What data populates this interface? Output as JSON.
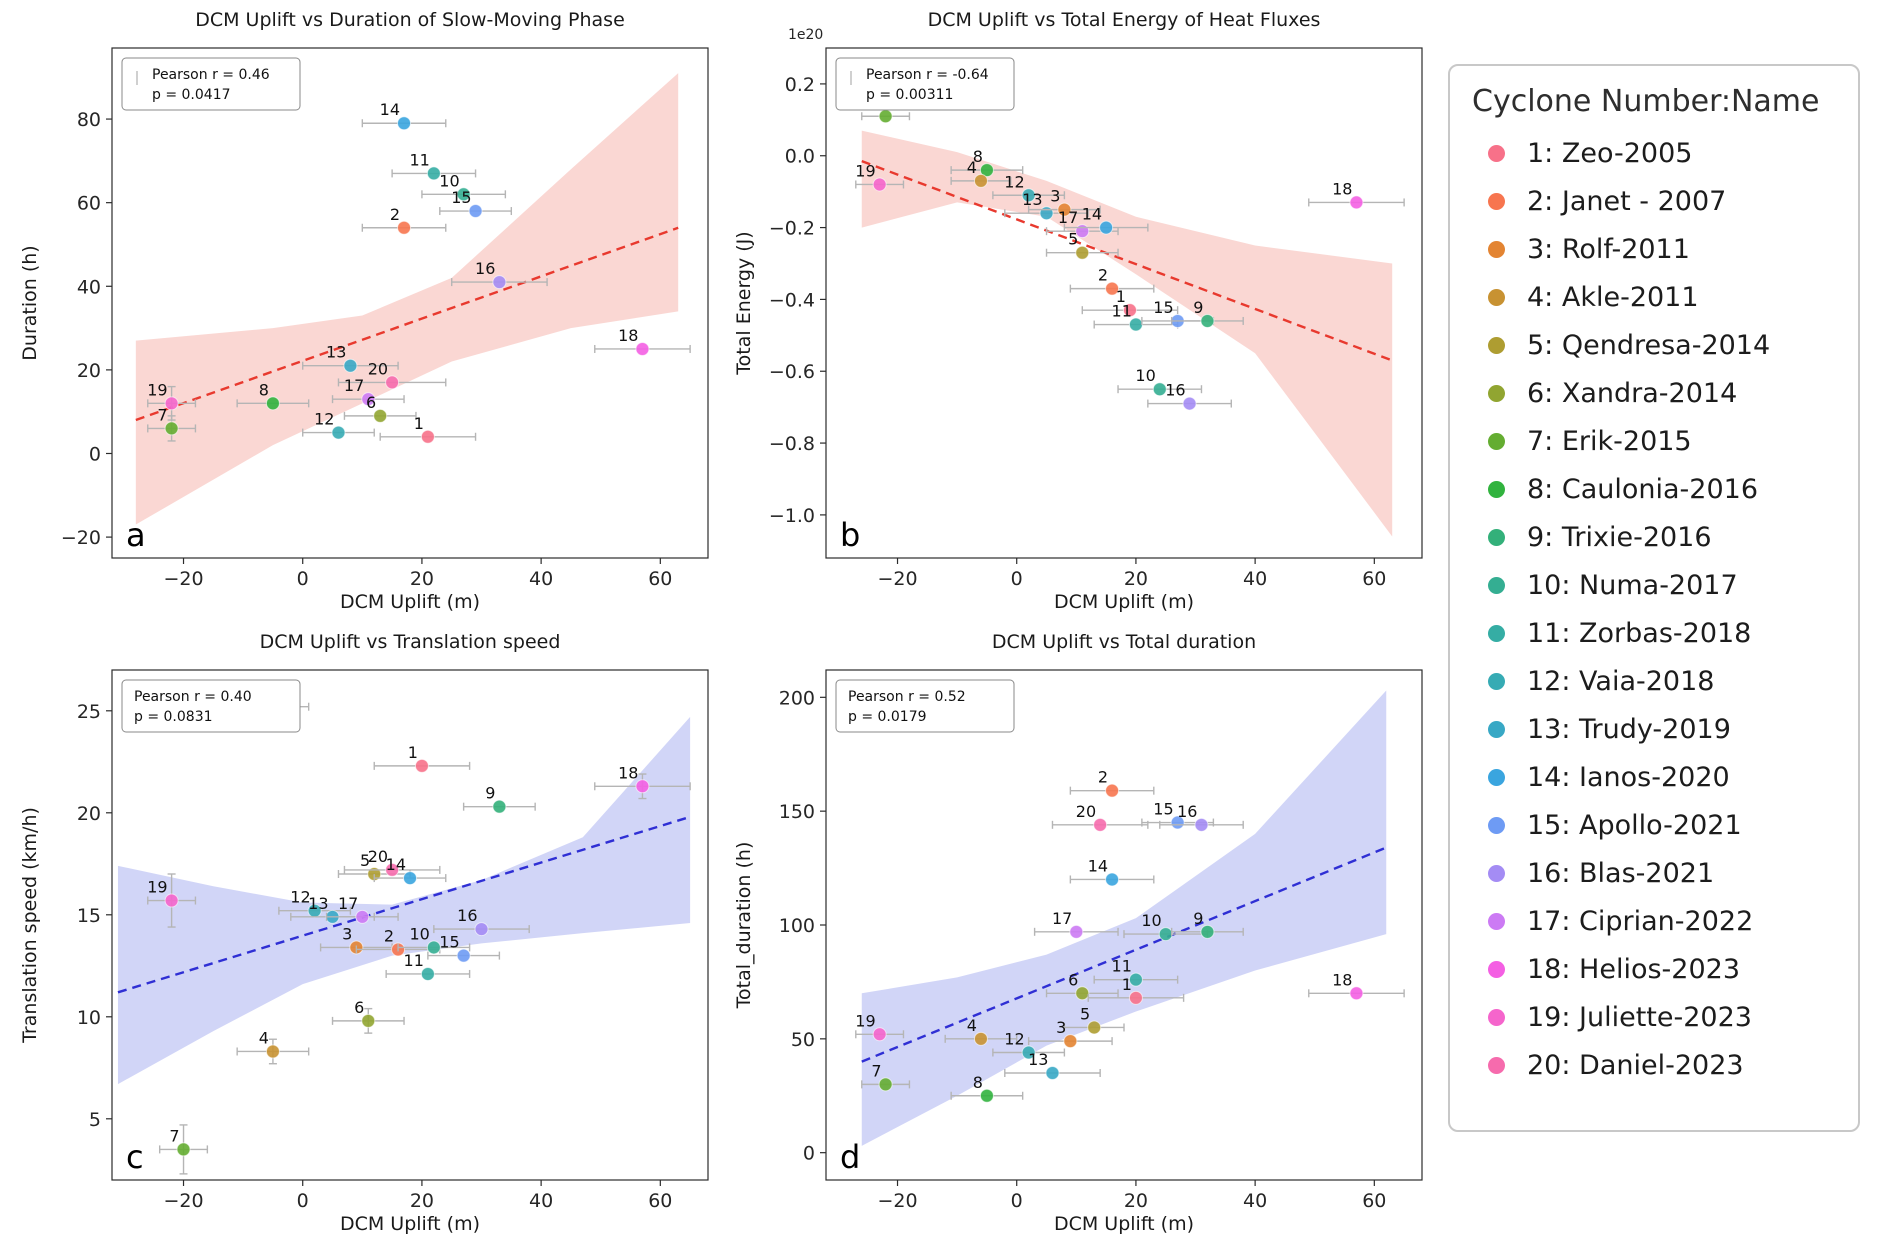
{
  "legend": {
    "title": "Cyclone Number:Name",
    "items": [
      {
        "num": "1",
        "name": "Zeo-2005",
        "color": "#f77189"
      },
      {
        "num": "2",
        "name": "Janet - 2007",
        "color": "#f7754f"
      },
      {
        "num": "3",
        "name": "Rolf-2011",
        "color": "#e38432"
      },
      {
        "num": "4",
        "name": "Akle-2011",
        "color": "#c89232"
      },
      {
        "num": "5",
        "name": "Qendresa-2014",
        "color": "#ae9d31"
      },
      {
        "num": "6",
        "name": "Xandra-2014",
        "color": "#91a531"
      },
      {
        "num": "7",
        "name": "Erik-2015",
        "color": "#64ad31"
      },
      {
        "num": "8",
        "name": "Caulonia-2016",
        "color": "#31b33e"
      },
      {
        "num": "9",
        "name": "Trixie-2016",
        "color": "#33b07a"
      },
      {
        "num": "10",
        "name": "Numa-2017",
        "color": "#34ae92"
      },
      {
        "num": "11",
        "name": "Zorbas-2018",
        "color": "#35ada4"
      },
      {
        "num": "12",
        "name": "Vaia-2018",
        "color": "#36abb4"
      },
      {
        "num": "13",
        "name": "Trudy-2019",
        "color": "#38a8c5"
      },
      {
        "num": "14",
        "name": "Ianos-2020",
        "color": "#3aa5df"
      },
      {
        "num": "15",
        "name": "Apollo-2021",
        "color": "#6e9bf4"
      },
      {
        "num": "16",
        "name": "Blas-2021",
        "color": "#a48cf4"
      },
      {
        "num": "17",
        "name": "Ciprian-2022",
        "color": "#cc7af4"
      },
      {
        "num": "18",
        "name": "Helios-2023",
        "color": "#f45fe3"
      },
      {
        "num": "19",
        "name": "Juliette-2023",
        "color": "#f565cc"
      },
      {
        "num": "20",
        "name": "Daniel-2023",
        "color": "#f66bad"
      }
    ]
  },
  "chart_data": [
    {
      "panel": "a",
      "type": "scatter",
      "title": "DCM Uplift vs Duration of Slow-Moving Phase",
      "xlabel": "DCM Uplift (m)",
      "ylabel": "Duration (h)",
      "annotation": {
        "lines": [
          "Pearson r = 0.46",
          "p = 0.0417"
        ],
        "handle": true
      },
      "xlim": [
        -32,
        68
      ],
      "ylim": [
        -25,
        97
      ],
      "xticks": [
        -20,
        0,
        20,
        40,
        60
      ],
      "yticks": [
        -20,
        0,
        20,
        40,
        60,
        80
      ],
      "ytick_decimals": 0,
      "trend": {
        "color": "#e8392e",
        "x": [
          -28,
          63
        ],
        "y": [
          8,
          54
        ]
      },
      "band": {
        "color": "#f28b82",
        "opacity": 0.35,
        "upper": [
          [
            -28,
            27
          ],
          [
            -5,
            30
          ],
          [
            10,
            33
          ],
          [
            25,
            42
          ],
          [
            45,
            68
          ],
          [
            63,
            91
          ]
        ],
        "lower": [
          [
            -28,
            -17
          ],
          [
            -5,
            2
          ],
          [
            10,
            12
          ],
          [
            25,
            22
          ],
          [
            45,
            30
          ],
          [
            63,
            34
          ]
        ]
      },
      "points": [
        {
          "id": 7,
          "x": -22,
          "y": 6,
          "xerr": 4,
          "yerr": 3
        },
        {
          "id": 19,
          "x": -22,
          "y": 12,
          "xerr": 4,
          "yerr": 4
        },
        {
          "id": 8,
          "x": -5,
          "y": 12,
          "xerr": 6
        },
        {
          "id": 12,
          "x": 6,
          "y": 5,
          "xerr": 6
        },
        {
          "id": 13,
          "x": 8,
          "y": 21,
          "xerr": 8
        },
        {
          "id": 17,
          "x": 11,
          "y": 13,
          "xerr": 6
        },
        {
          "id": 6,
          "x": 13,
          "y": 9,
          "xerr": 6
        },
        {
          "id": 20,
          "x": 15,
          "y": 17,
          "xerr": 9
        },
        {
          "id": 2,
          "x": 17,
          "y": 54,
          "xerr": 7
        },
        {
          "id": 14,
          "x": 17,
          "y": 79,
          "xerr": 7
        },
        {
          "id": 1,
          "x": 21,
          "y": 4,
          "xerr": 8
        },
        {
          "id": 11,
          "x": 22,
          "y": 67,
          "xerr": 7
        },
        {
          "id": 10,
          "x": 27,
          "y": 62,
          "xerr": 7
        },
        {
          "id": 15,
          "x": 29,
          "y": 58,
          "xerr": 6
        },
        {
          "id": 16,
          "x": 33,
          "y": 41,
          "xerr": 8
        },
        {
          "id": 18,
          "x": 57,
          "y": 25,
          "xerr": 8
        }
      ]
    },
    {
      "panel": "b",
      "type": "scatter",
      "title": "DCM Uplift vs Total Energy of Heat Fluxes",
      "xlabel": "DCM Uplift (m)",
      "ylabel": "Total Energy (J)",
      "offset_text": "1e20",
      "annotation": {
        "lines": [
          "Pearson r = -0.64",
          "p = 0.00311"
        ],
        "handle": true
      },
      "xlim": [
        -32,
        68
      ],
      "ylim": [
        -1.12,
        0.3
      ],
      "xticks": [
        -20,
        0,
        20,
        40,
        60
      ],
      "yticks": [
        0.2,
        0.0,
        -0.2,
        -0.4,
        -0.6,
        -0.8,
        -1.0
      ],
      "ytick_decimals": 1,
      "trend": {
        "color": "#e8392e",
        "x": [
          -26,
          63
        ],
        "y": [
          -0.015,
          -0.57
        ]
      },
      "band": {
        "color": "#f28b82",
        "opacity": 0.35,
        "upper": [
          [
            -26,
            0.07
          ],
          [
            -10,
            0.01
          ],
          [
            5,
            -0.07
          ],
          [
            20,
            -0.17
          ],
          [
            40,
            -0.25
          ],
          [
            63,
            -0.3
          ]
        ],
        "lower": [
          [
            -26,
            -0.2
          ],
          [
            -10,
            -0.13
          ],
          [
            5,
            -0.17
          ],
          [
            20,
            -0.33
          ],
          [
            40,
            -0.55
          ],
          [
            63,
            -1.06
          ]
        ]
      },
      "points": [
        {
          "id": 7,
          "x": -22,
          "y": 0.11,
          "xerr": 4
        },
        {
          "id": 19,
          "x": -23,
          "y": -0.08,
          "xerr": 4
        },
        {
          "id": 8,
          "x": -5,
          "y": -0.04,
          "xerr": 6
        },
        {
          "id": 4,
          "x": -6,
          "y": -0.07,
          "xerr": 5
        },
        {
          "id": 12,
          "x": 2,
          "y": -0.11,
          "xerr": 6
        },
        {
          "id": 13,
          "x": 5,
          "y": -0.16,
          "xerr": 7
        },
        {
          "id": 3,
          "x": 8,
          "y": -0.15,
          "xerr": 6
        },
        {
          "id": 17,
          "x": 11,
          "y": -0.21,
          "xerr": 6
        },
        {
          "id": 14,
          "x": 15,
          "y": -0.2,
          "xerr": 7
        },
        {
          "id": 5,
          "x": 11,
          "y": -0.27,
          "xerr": 6
        },
        {
          "id": 2,
          "x": 16,
          "y": -0.37,
          "xerr": 7
        },
        {
          "id": 1,
          "x": 19,
          "y": -0.43,
          "xerr": 8
        },
        {
          "id": 11,
          "x": 20,
          "y": -0.47,
          "xerr": 7
        },
        {
          "id": 15,
          "x": 27,
          "y": -0.46,
          "xerr": 6
        },
        {
          "id": 9,
          "x": 32,
          "y": -0.46,
          "xerr": 6
        },
        {
          "id": 10,
          "x": 24,
          "y": -0.65,
          "xerr": 7
        },
        {
          "id": 16,
          "x": 29,
          "y": -0.69,
          "xerr": 7
        },
        {
          "id": 18,
          "x": 57,
          "y": -0.13,
          "xerr": 8
        }
      ]
    },
    {
      "panel": "c",
      "type": "scatter",
      "title": "DCM Uplift vs Translation speed",
      "xlabel": "DCM Uplift (m)",
      "ylabel": "Translation speed (km/h)",
      "annotation": {
        "lines": [
          "Pearson r = 0.40",
          "p = 0.0831"
        ],
        "handle": false
      },
      "xlim": [
        -32,
        68
      ],
      "ylim": [
        2,
        27
      ],
      "xticks": [
        -20,
        0,
        20,
        40,
        60
      ],
      "yticks": [
        5,
        10,
        15,
        20,
        25
      ],
      "ytick_decimals": 0,
      "trend": {
        "color": "#2f2fd4",
        "x": [
          -31,
          65
        ],
        "y": [
          11.2,
          19.8
        ]
      },
      "band": {
        "color": "#8c96ea",
        "opacity": 0.4,
        "upper": [
          [
            -31,
            17.4
          ],
          [
            -15,
            16.4
          ],
          [
            0,
            15.6
          ],
          [
            15,
            15.5
          ],
          [
            30,
            16.7
          ],
          [
            47,
            18.8
          ],
          [
            65,
            24.7
          ]
        ],
        "lower": [
          [
            -31,
            6.7
          ],
          [
            -15,
            9.3
          ],
          [
            0,
            11.6
          ],
          [
            15,
            13.0
          ],
          [
            30,
            13.6
          ],
          [
            47,
            14.1
          ],
          [
            65,
            14.6
          ]
        ]
      },
      "points": [
        {
          "id": 7,
          "x": -20,
          "y": 3.5,
          "xerr": 4,
          "yerr": 1.2
        },
        {
          "id": 19,
          "x": -22,
          "y": 15.7,
          "xerr": 4,
          "yerr": 1.3
        },
        {
          "id": 4,
          "x": -5,
          "y": 8.3,
          "xerr": 6,
          "yerr": 0.6
        },
        {
          "id": 8,
          "x": -5,
          "y": 25.2,
          "xerr": 6,
          "yerr": 0.6
        },
        {
          "id": 12,
          "x": 2,
          "y": 15.2,
          "xerr": 6
        },
        {
          "id": 13,
          "x": 5,
          "y": 14.9,
          "xerr": 7
        },
        {
          "id": 17,
          "x": 10,
          "y": 14.9,
          "xerr": 6
        },
        {
          "id": 3,
          "x": 9,
          "y": 13.4,
          "xerr": 6
        },
        {
          "id": 6,
          "x": 11,
          "y": 9.8,
          "xerr": 6,
          "yerr": 0.6
        },
        {
          "id": 5,
          "x": 12,
          "y": 17.0,
          "xerr": 6
        },
        {
          "id": 20,
          "x": 15,
          "y": 17.2,
          "xerr": 8
        },
        {
          "id": 14,
          "x": 18,
          "y": 16.8,
          "xerr": 6
        },
        {
          "id": 2,
          "x": 16,
          "y": 13.3,
          "xerr": 7
        },
        {
          "id": 1,
          "x": 20,
          "y": 22.3,
          "xerr": 8
        },
        {
          "id": 11,
          "x": 21,
          "y": 12.1,
          "xerr": 7
        },
        {
          "id": 10,
          "x": 22,
          "y": 13.4,
          "xerr": 6
        },
        {
          "id": 15,
          "x": 27,
          "y": 13.0,
          "xerr": 6
        },
        {
          "id": 16,
          "x": 30,
          "y": 14.3,
          "xerr": 8
        },
        {
          "id": 9,
          "x": 33,
          "y": 20.3,
          "xerr": 6
        },
        {
          "id": 18,
          "x": 57,
          "y": 21.3,
          "xerr": 8,
          "yerr": 0.6
        }
      ]
    },
    {
      "panel": "d",
      "type": "scatter",
      "title": "DCM Uplift vs Total duration",
      "xlabel": "DCM Uplift (m)",
      "ylabel": "Total_duration (h)",
      "annotation": {
        "lines": [
          "Pearson r = 0.52",
          "p = 0.0179"
        ],
        "handle": false
      },
      "xlim": [
        -32,
        68
      ],
      "ylim": [
        -12,
        212
      ],
      "xticks": [
        -20,
        0,
        20,
        40,
        60
      ],
      "yticks": [
        0,
        50,
        100,
        150,
        200
      ],
      "ytick_decimals": 0,
      "trend": {
        "color": "#2f2fd4",
        "x": [
          -26,
          62
        ],
        "y": [
          40,
          134
        ]
      },
      "band": {
        "color": "#8c96ea",
        "opacity": 0.4,
        "upper": [
          [
            -26,
            70
          ],
          [
            -10,
            77
          ],
          [
            5,
            87
          ],
          [
            20,
            103
          ],
          [
            40,
            140
          ],
          [
            62,
            203
          ]
        ],
        "lower": [
          [
            -26,
            3
          ],
          [
            -10,
            25
          ],
          [
            5,
            47
          ],
          [
            20,
            62
          ],
          [
            40,
            80
          ],
          [
            62,
            96
          ]
        ]
      },
      "points": [
        {
          "id": 7,
          "x": -22,
          "y": 30,
          "xerr": 4
        },
        {
          "id": 19,
          "x": -23,
          "y": 52,
          "xerr": 4
        },
        {
          "id": 8,
          "x": -5,
          "y": 25,
          "xerr": 6
        },
        {
          "id": 4,
          "x": -6,
          "y": 50,
          "xerr": 6
        },
        {
          "id": 12,
          "x": 2,
          "y": 44,
          "xerr": 6
        },
        {
          "id": 13,
          "x": 6,
          "y": 35,
          "xerr": 8
        },
        {
          "id": 3,
          "x": 9,
          "y": 49,
          "xerr": 7
        },
        {
          "id": 5,
          "x": 13,
          "y": 55,
          "xerr": 5
        },
        {
          "id": 17,
          "x": 10,
          "y": 97,
          "xerr": 7
        },
        {
          "id": 6,
          "x": 11,
          "y": 70,
          "xerr": 6
        },
        {
          "id": 14,
          "x": 16,
          "y": 120,
          "xerr": 7
        },
        {
          "id": 20,
          "x": 14,
          "y": 144,
          "xerr": 8
        },
        {
          "id": 2,
          "x": 16,
          "y": 159,
          "xerr": 7
        },
        {
          "id": 1,
          "x": 20,
          "y": 68,
          "xerr": 8
        },
        {
          "id": 11,
          "x": 20,
          "y": 76,
          "xerr": 7
        },
        {
          "id": 10,
          "x": 25,
          "y": 96,
          "xerr": 7
        },
        {
          "id": 15,
          "x": 27,
          "y": 145,
          "xerr": 6
        },
        {
          "id": 16,
          "x": 31,
          "y": 144,
          "xerr": 7
        },
        {
          "id": 9,
          "x": 32,
          "y": 97,
          "xerr": 6
        },
        {
          "id": 18,
          "x": 57,
          "y": 70,
          "xerr": 8
        }
      ]
    }
  ]
}
